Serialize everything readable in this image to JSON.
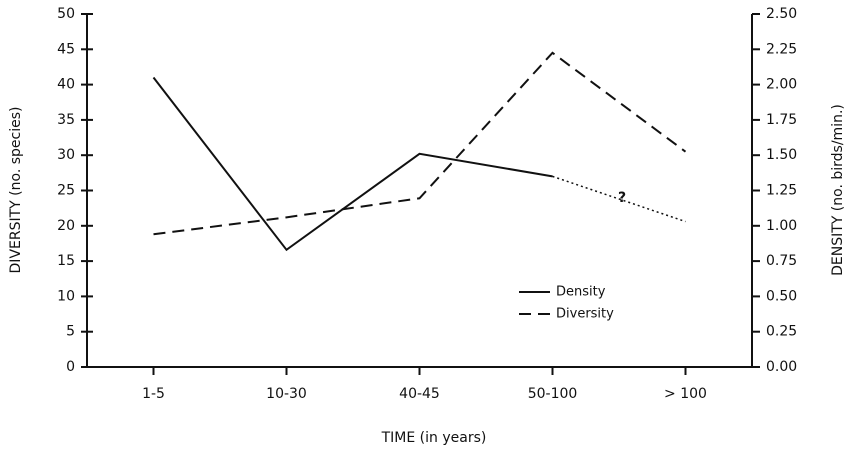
{
  "chart_data": {
    "type": "line",
    "xlabel": "TIME (in years)",
    "ylabel": "DIVERSITY (no. species)",
    "y2label": "DENSITY (no. birds/min.)",
    "categories": [
      "1-5",
      "10-30",
      "40-45",
      "50-100",
      "> 100"
    ],
    "series": [
      {
        "name": "Density",
        "color": "#111111",
        "style": "solid",
        "axis": "y2",
        "dotted_after": 3,
        "values": [
          2.05,
          0.83,
          1.51,
          1.35,
          1.03
        ]
      },
      {
        "name": "Diversity",
        "color": "#111111",
        "style": "dashed",
        "values": [
          18.8,
          21.2,
          23.9,
          44.5,
          30.5
        ]
      }
    ],
    "annotation": "?",
    "ylim": [
      0,
      50
    ],
    "yticks": [
      0,
      5,
      10,
      15,
      20,
      25,
      30,
      35,
      40,
      45,
      50
    ],
    "y2lim": [
      0,
      2.5
    ],
    "y2ticks": [
      {
        "value": 0,
        "label": "0.00"
      },
      {
        "value": 0.25,
        "label": "0.25"
      },
      {
        "value": 0.5,
        "label": "0.50"
      },
      {
        "value": 0.75,
        "label": "0.75"
      },
      {
        "value": 1,
        "label": "1.00"
      },
      {
        "value": 1.25,
        "label": "1.25"
      },
      {
        "value": 1.5,
        "label": "1.50"
      },
      {
        "value": 1.75,
        "label": "1.75"
      },
      {
        "value": 2,
        "label": "2.00"
      },
      {
        "value": 2.25,
        "label": "2.25"
      },
      {
        "value": 2.5,
        "label": "2.50"
      }
    ],
    "legend": "lower-right"
  }
}
